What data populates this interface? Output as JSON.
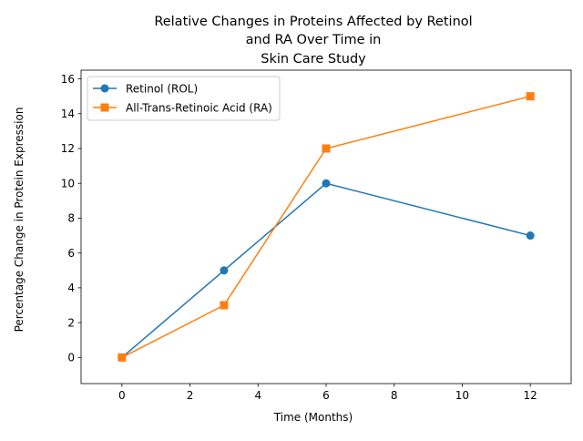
{
  "chart_data": {
    "type": "line",
    "title_lines": [
      "Relative Changes in Proteins Affected by Retinol",
      "and RA Over Time in",
      "Skin Care Study"
    ],
    "xlabel": "Time (Months)",
    "ylabel": "Percentage Change in Protein Expression",
    "xlim": [
      -1.2,
      13.2
    ],
    "ylim": [
      -1.5,
      16.5
    ],
    "xticks": [
      0,
      2,
      4,
      6,
      8,
      10,
      12
    ],
    "yticks": [
      0,
      2,
      4,
      6,
      8,
      10,
      12,
      14,
      16
    ],
    "x": [
      0,
      3,
      6,
      12
    ],
    "series": [
      {
        "name": "Retinol (ROL)",
        "values": [
          0,
          5,
          10,
          7
        ],
        "color": "#1f77b4",
        "marker": "circle"
      },
      {
        "name": "All-Trans-Retinoic Acid (RA)",
        "values": [
          0,
          3,
          12,
          15
        ],
        "color": "#ff7f0e",
        "marker": "square"
      }
    ],
    "legend_position": "top-left",
    "grid": false
  }
}
